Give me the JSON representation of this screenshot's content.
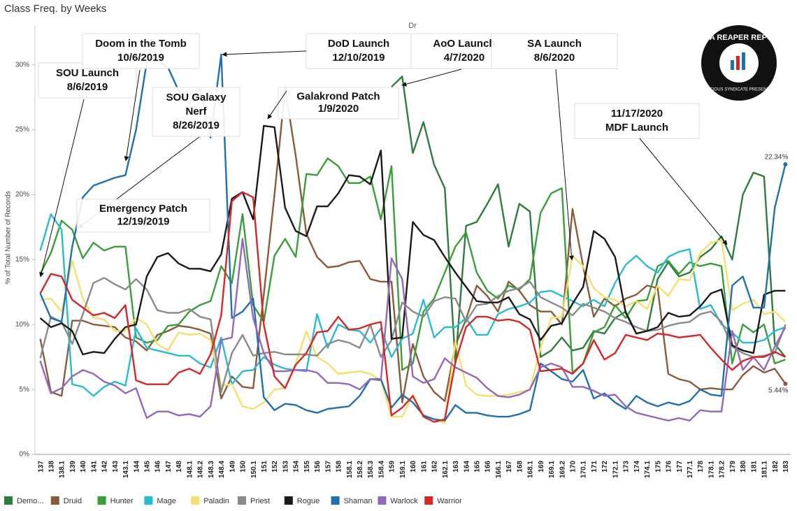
{
  "chart_data": {
    "type": "line",
    "title": "Class Freq. by Weeks",
    "header": "Dr",
    "y_label": "% of Total Number of Records",
    "logo": {
      "title": "DATA REAPER REPORT",
      "subtitle": "VICIOUS SYNDICATE PRESENTS"
    },
    "categories": [
      "137",
      "138",
      "138.1",
      "139",
      "140",
      "141",
      "142",
      "143",
      "143.1",
      "144",
      "145",
      "146",
      "147",
      "148",
      "148.1",
      "148.2",
      "148.3",
      "148.4",
      "149",
      "150",
      "150.1",
      "151",
      "152",
      "153",
      "154",
      "155",
      "156",
      "157",
      "158",
      "158.1",
      "158.2",
      "158.3",
      "158.4",
      "159",
      "159.1",
      "160",
      "161",
      "162",
      "162.1",
      "163",
      "164",
      "165",
      "166",
      "166.1",
      "167",
      "168",
      "168.1",
      "169",
      "169.1",
      "169.2",
      "170",
      "170.1",
      "171",
      "172",
      "172.1",
      "173",
      "174",
      "174.1",
      "175",
      "176",
      "177",
      "177.1",
      "178",
      "178.1",
      "178.2",
      "179",
      "180",
      "181",
      "181.1",
      "182",
      "183"
    ],
    "ylim": [
      0,
      33
    ],
    "yticks": [
      {
        "value": 0,
        "label": "0%"
      },
      {
        "value": 5,
        "label": "5%"
      },
      {
        "value": 10,
        "label": "10%"
      },
      {
        "value": 15,
        "label": "15%"
      },
      {
        "value": 20,
        "label": "20%"
      },
      {
        "value": 25,
        "label": "25%"
      },
      {
        "value": 30,
        "label": "30%"
      }
    ],
    "grid": false,
    "legend": "bottom",
    "series": [
      {
        "name": "Demo...",
        "color": "#2e7d3c",
        "values": [
          null,
          null,
          null,
          null,
          null,
          null,
          null,
          null,
          null,
          null,
          null,
          null,
          null,
          null,
          null,
          null,
          null,
          null,
          null,
          null,
          null,
          null,
          null,
          null,
          null,
          null,
          null,
          null,
          null,
          null,
          null,
          null,
          null,
          28.3,
          29.1,
          23.2,
          25.6,
          22.3,
          20.5,
          7,
          17.6,
          17.9,
          19.3,
          20.8,
          16,
          19.3,
          18.7,
          7.5,
          8,
          9,
          8,
          8.2,
          9.5,
          9.3,
          10.5,
          11,
          9.3,
          9.5,
          13.5,
          14.8,
          13.7,
          14,
          15.2,
          15.8,
          16.8,
          15,
          20,
          21.7,
          21.4,
          8.5,
          7.5
        ]
      },
      {
        "name": "Druid",
        "color": "#8b5a3c",
        "values": [
          8.9,
          4.8,
          4.5,
          10.3,
          10.3,
          10,
          9.9,
          9.8,
          9,
          8.7,
          8,
          9.2,
          9.5,
          9.9,
          9.8,
          9.6,
          9.3,
          4.3,
          6,
          5.2,
          5.1,
          12.3,
          20,
          28.2,
          23,
          17,
          15.2,
          14.4,
          14.5,
          14.8,
          14.9,
          13.5,
          13.3,
          13.3,
          4,
          8.5,
          6,
          4.8,
          4.1,
          8.4,
          10.4,
          13,
          12.2,
          11,
          13.3,
          12.6,
          11.5,
          11,
          11,
          10,
          18.9,
          14.5,
          10.6,
          12,
          11.4,
          12,
          12.3,
          13,
          12.8,
          6.2,
          5.8,
          5.6,
          5,
          5.1,
          5,
          5,
          6.1,
          6.8,
          6.3,
          6.6,
          5.44
        ],
        "value_labels": [
          null,
          null,
          null,
          null,
          null,
          null,
          null,
          null,
          null,
          null,
          null,
          null,
          null,
          null,
          null,
          null,
          null,
          null,
          null,
          null,
          null,
          null,
          null,
          null,
          null,
          null,
          null,
          null,
          null,
          null,
          null,
          null,
          null,
          null,
          null,
          null,
          null,
          null,
          null,
          null,
          null,
          null,
          null,
          null,
          null,
          null,
          null,
          null,
          null,
          null,
          null,
          null,
          null,
          null,
          null,
          null,
          null,
          null,
          null,
          null,
          null,
          null,
          null,
          null,
          null,
          null,
          null,
          null,
          null,
          null,
          "5.44%"
        ]
      },
      {
        "name": "Hunter",
        "color": "#3a9e3a",
        "values": [
          13.9,
          15.5,
          18,
          17.3,
          15.1,
          16.3,
          15.7,
          16,
          16,
          9,
          8.6,
          8.8,
          9.9,
          10,
          11,
          11.5,
          11.8,
          14.5,
          13.2,
          18.5,
          11.5,
          10.2,
          15.3,
          16.6,
          15.2,
          21.6,
          21.5,
          22.8,
          22.2,
          20.9,
          20.9,
          21.4,
          18.1,
          22.2,
          6.5,
          7,
          11,
          12,
          14,
          16,
          17.1,
          14,
          12.6,
          12,
          13,
          12.7,
          13.5,
          18.6,
          20.1,
          20.5,
          6.3,
          7,
          9.4,
          9.8,
          11.5,
          10.5,
          11.8,
          11.9,
          14.5,
          14.9,
          13.9,
          14.8,
          14.5,
          14.7,
          14.5,
          7,
          10,
          9.4,
          10,
          7,
          7.3
        ]
      },
      {
        "name": "Mage",
        "color": "#27bccf",
        "values": [
          15.7,
          18.5,
          17.3,
          5.4,
          5.2,
          4.5,
          5.2,
          5.6,
          5.3,
          9.7,
          8.2,
          8,
          7.8,
          7.6,
          7.6,
          7,
          6.7,
          9,
          5.4,
          6.4,
          6.5,
          7.5,
          6.9,
          6.6,
          6.5,
          6.4,
          10.8,
          8.2,
          10,
          9.6,
          9.5,
          8.6,
          9.7,
          7.5,
          8.9,
          9.3,
          11.9,
          9,
          9.8,
          9.8,
          10.5,
          9.2,
          9.2,
          10.8,
          11.2,
          11.4,
          11.7,
          12.5,
          12.6,
          12.2,
          11.8,
          11.4,
          11.9,
          11.4,
          13.2,
          14.6,
          15.3,
          14.5,
          14,
          15.2,
          15.6,
          15.8,
          11.2,
          11.5,
          10,
          9.4,
          8.6,
          8.6,
          8.8,
          9.5,
          9.8
        ]
      },
      {
        "name": "Paladin",
        "color": "#f6df6c",
        "values": [
          11.9,
          12,
          11,
          14.9,
          12,
          10.5,
          10.4,
          9.5,
          9.5,
          10.5,
          10,
          8.5,
          8,
          9.4,
          9.2,
          9.3,
          8.8,
          5.3,
          5.4,
          3.7,
          3.5,
          4,
          5,
          5.1,
          7,
          9.5,
          7.5,
          7,
          6.2,
          6.3,
          6.4,
          6.2,
          5.7,
          2.9,
          2.9,
          4.6,
          3,
          2.7,
          2.4,
          8.7,
          5.3,
          4.6,
          4.5,
          4.5,
          4.6,
          4.8,
          5,
          8.2,
          10.5,
          10.6,
          15.3,
          14.5,
          12.8,
          12.1,
          11.9,
          11.4,
          11.8,
          11.2,
          13,
          12.2,
          13.5,
          13.4,
          15.5,
          16.3,
          16.5,
          11.1,
          11.6,
          11.9,
          10.8,
          11,
          10.2
        ]
      },
      {
        "name": "Priest",
        "color": "#8a8a8a",
        "values": [
          7.4,
          10.6,
          10.2,
          8.5,
          10.8,
          13.2,
          13.6,
          13.1,
          12.7,
          13.5,
          12.7,
          11.1,
          10.9,
          10.9,
          11.2,
          10.6,
          10.4,
          4.8,
          7.8,
          9.2,
          7.6,
          7.8,
          7.9,
          7.7,
          7.7,
          7.7,
          7.6,
          8.5,
          8.8,
          8.6,
          8.2,
          10,
          7.5,
          8.8,
          11.7,
          11,
          10.6,
          11.8,
          12.1,
          12,
          10.2,
          11.5,
          11.6,
          12.2,
          12.6,
          12.8,
          13.3,
          12.1,
          11.7,
          11.3,
          10.7,
          11.6,
          11.3,
          11,
          10.5,
          10.2,
          9.8,
          9.5,
          9.6,
          9.9,
          10.1,
          10.2,
          10.8,
          11,
          10.2,
          8.3,
          7.8,
          7.5,
          7.6,
          7.8,
          10
        ]
      },
      {
        "name": "Rogue",
        "color": "#1a1a1a",
        "values": [
          10.5,
          9.8,
          10.1,
          9.5,
          7.7,
          7.9,
          7.8,
          8.9,
          9.8,
          10,
          13.7,
          15.2,
          15.5,
          14.7,
          14.3,
          14.3,
          14.1,
          15.4,
          19.7,
          20.2,
          18.1,
          25.3,
          25.2,
          19,
          17.2,
          16.8,
          19.1,
          19.1,
          20.1,
          21.5,
          21.4,
          20.8,
          23.4,
          8.9,
          9,
          17.9,
          16.9,
          16.5,
          15.2,
          14,
          12.9,
          11.8,
          11.7,
          11.7,
          12.1,
          10.8,
          10.4,
          8.8,
          9.9,
          10.1,
          11.6,
          12.9,
          17.2,
          16.6,
          15.2,
          10.9,
          9.3,
          9.5,
          9.8,
          10.9,
          10.6,
          10.7,
          11.4,
          12.4,
          12.7,
          8.4,
          8,
          7.8,
          12.3,
          12.6,
          12.6
        ]
      },
      {
        "name": "Shaman",
        "color": "#1f70b0",
        "values": [
          12.4,
          10.5,
          10.2,
          16,
          19.8,
          20.7,
          21,
          21.3,
          21.5,
          25,
          30.2,
          30.3,
          29.8,
          28,
          27,
          28.2,
          24.4,
          30.8,
          10.5,
          11,
          12,
          4.4,
          3.4,
          3.9,
          3.8,
          3.4,
          3.2,
          3.5,
          3.6,
          3.7,
          4.5,
          5.8,
          5.8,
          3.6,
          4.6,
          4,
          3,
          2.7,
          2.6,
          3.8,
          3.2,
          3.2,
          3,
          2.9,
          2.9,
          3.1,
          3.4,
          7,
          6.4,
          5.8,
          5.6,
          6.5,
          4.3,
          4.7,
          4,
          3.5,
          4.5,
          4,
          3.7,
          4,
          3.8,
          4.1,
          5,
          4.6,
          4.5,
          13,
          13.7,
          11.3,
          11.3,
          19,
          22.34
        ],
        "value_labels": [
          null,
          null,
          null,
          null,
          null,
          null,
          null,
          null,
          null,
          null,
          null,
          null,
          null,
          null,
          null,
          null,
          null,
          null,
          null,
          null,
          null,
          null,
          null,
          null,
          null,
          null,
          null,
          null,
          null,
          null,
          null,
          null,
          null,
          null,
          null,
          null,
          null,
          null,
          null,
          null,
          null,
          null,
          null,
          null,
          null,
          null,
          null,
          null,
          null,
          null,
          null,
          null,
          null,
          null,
          null,
          null,
          null,
          null,
          null,
          null,
          null,
          null,
          null,
          null,
          null,
          null,
          null,
          null,
          null,
          null,
          "22.34%"
        ]
      },
      {
        "name": "Warlock",
        "color": "#9467bd",
        "values": [
          7.2,
          4.7,
          5.1,
          6,
          6.5,
          6.2,
          5.6,
          5.3,
          4.7,
          5.1,
          2.8,
          3.3,
          3.3,
          3,
          3.1,
          2.9,
          3.7,
          8.8,
          9,
          16.6,
          10.5,
          7.8,
          6.4,
          6.4,
          6.5,
          6.5,
          6.3,
          5.5,
          5.5,
          5.4,
          5,
          5.8,
          5.7,
          15.1,
          13.5,
          6,
          5.5,
          5.8,
          7.4,
          6.7,
          6.3,
          5.9,
          5.1,
          4.5,
          4.4,
          4.6,
          5,
          6.7,
          7,
          6.7,
          5.2,
          5.2,
          4.9,
          4.5,
          4.6,
          3.7,
          3.2,
          3,
          2.8,
          2.6,
          2.8,
          2.6,
          3.4,
          3.3,
          3.3,
          9.5,
          6.5,
          7.5,
          6.5,
          8.3,
          9.8
        ]
      },
      {
        "name": "Warrior",
        "color": "#d62728",
        "values": [
          12.4,
          13.9,
          13.7,
          11.9,
          11.3,
          10.7,
          10.9,
          10.5,
          11.5,
          5.7,
          5.4,
          5.4,
          5.4,
          6.3,
          6.6,
          6.2,
          7.7,
          10.7,
          19.5,
          20.2,
          19.8,
          10,
          6,
          5.1,
          6.9,
          7.8,
          9.4,
          9.5,
          10.6,
          9.6,
          9.7,
          10,
          10.2,
          3,
          3.6,
          4.5,
          2.9,
          2.5,
          2.7,
          7.1,
          9.8,
          10.6,
          10.6,
          10.3,
          10.4,
          10.2,
          9.6,
          6.4,
          6.5,
          6.6,
          6.2,
          7,
          8.8,
          7.3,
          7.8,
          9.2,
          9,
          8.8,
          9.3,
          9.2,
          9,
          9.1,
          9.2,
          8.2,
          7.3,
          6.5,
          7.2,
          7.5,
          7.5,
          7.9,
          7.5
        ]
      }
    ],
    "annotations": [
      {
        "lines": [
          "SOU Launch",
          "8/6/2019"
        ]
      },
      {
        "lines": [
          "Doom in the Tomb",
          "10/6/2019"
        ]
      },
      {
        "lines": [
          "SOU Galaxy",
          "Nerf",
          "8/26/2019"
        ]
      },
      {
        "lines": [
          "Emergency Patch",
          "12/19/2019"
        ]
      },
      {
        "lines": [
          "DoD Launch",
          "12/10/2019"
        ]
      },
      {
        "lines": [
          "Galakrond Patch",
          "1/9/2020"
        ]
      },
      {
        "lines": [
          "AoO Launch",
          "4/7/2020"
        ]
      },
      {
        "lines": [
          "SA Launch",
          "8/6/2020"
        ]
      },
      {
        "lines": [
          "11/17/2020",
          "MDF Launch"
        ]
      }
    ]
  }
}
